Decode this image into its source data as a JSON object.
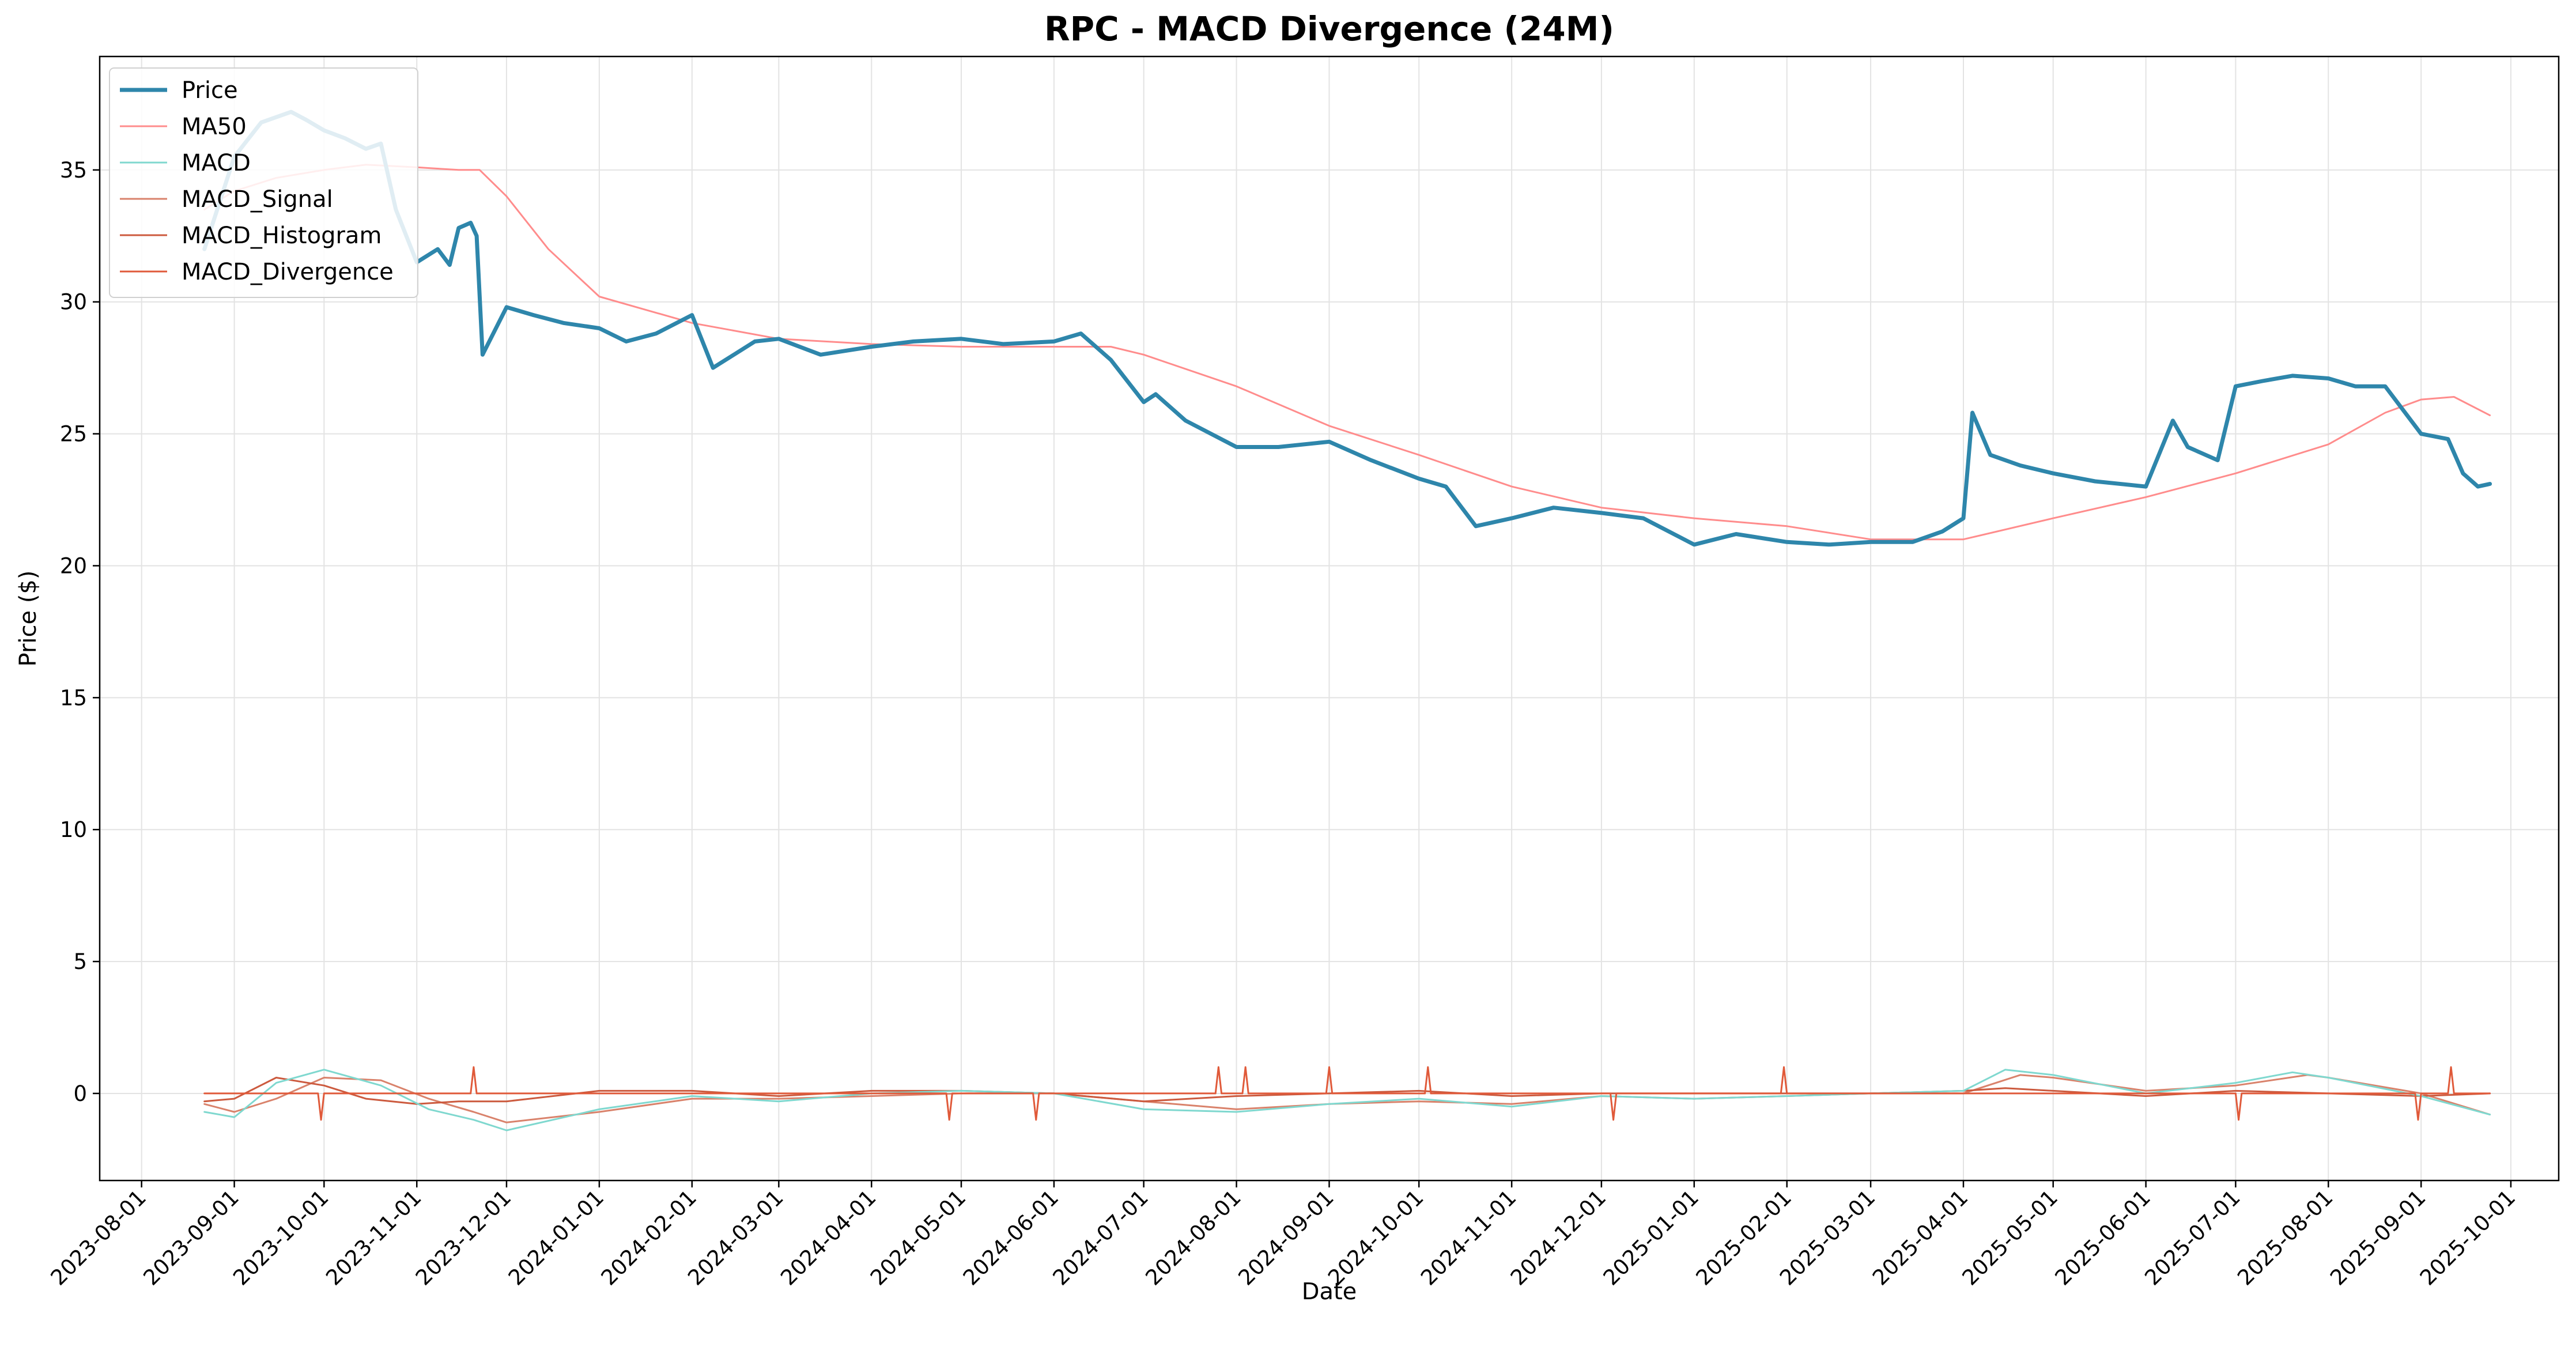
{
  "chart_data": {
    "type": "line",
    "title": "RPC - MACD Divergence (24M)",
    "xlabel": "Date",
    "ylabel": "Price ($)",
    "xlim": [
      "2023-07-18",
      "2025-10-17"
    ],
    "ylim": [
      -3.3,
      39.3
    ],
    "grid": true,
    "legend_position": "top-left",
    "x_ticks": [
      "2023-08-01",
      "2023-09-01",
      "2023-10-01",
      "2023-11-01",
      "2023-12-01",
      "2024-01-01",
      "2024-02-01",
      "2024-03-01",
      "2024-04-01",
      "2024-05-01",
      "2024-06-01",
      "2024-07-01",
      "2024-08-01",
      "2024-09-01",
      "2024-10-01",
      "2024-11-01",
      "2024-12-01",
      "2025-01-01",
      "2025-02-01",
      "2025-03-01",
      "2025-04-01",
      "2025-05-01",
      "2025-06-01",
      "2025-07-01",
      "2025-08-01",
      "2025-09-01",
      "2025-10-01"
    ],
    "y_ticks": [
      0,
      5,
      10,
      15,
      20,
      25,
      30,
      35
    ],
    "series": [
      {
        "name": "Price",
        "color": "#2e86ab",
        "width": 7,
        "x": [
          "2023-08-22",
          "2023-09-01",
          "2023-09-10",
          "2023-09-20",
          "2023-09-25",
          "2023-10-01",
          "2023-10-08",
          "2023-10-15",
          "2023-10-20",
          "2023-10-25",
          "2023-11-01",
          "2023-11-08",
          "2023-11-12",
          "2023-11-15",
          "2023-11-19",
          "2023-11-21",
          "2023-11-23",
          "2023-12-01",
          "2023-12-10",
          "2023-12-20",
          "2024-01-01",
          "2024-01-10",
          "2024-01-20",
          "2024-02-01",
          "2024-02-08",
          "2024-02-15",
          "2024-02-22",
          "2024-03-01",
          "2024-03-15",
          "2024-04-01",
          "2024-04-15",
          "2024-05-01",
          "2024-05-15",
          "2024-06-01",
          "2024-06-10",
          "2024-06-20",
          "2024-07-01",
          "2024-07-05",
          "2024-07-15",
          "2024-08-01",
          "2024-08-15",
          "2024-09-01",
          "2024-09-15",
          "2024-10-01",
          "2024-10-10",
          "2024-10-20",
          "2024-11-01",
          "2024-11-15",
          "2024-12-01",
          "2024-12-15",
          "2025-01-01",
          "2025-01-15",
          "2025-02-01",
          "2025-02-15",
          "2025-03-01",
          "2025-03-15",
          "2025-03-25",
          "2025-04-01",
          "2025-04-04",
          "2025-04-10",
          "2025-04-20",
          "2025-05-01",
          "2025-05-15",
          "2025-06-01",
          "2025-06-10",
          "2025-06-15",
          "2025-06-25",
          "2025-07-01",
          "2025-07-10",
          "2025-07-20",
          "2025-08-01",
          "2025-08-10",
          "2025-08-20",
          "2025-09-01",
          "2025-09-10",
          "2025-09-15",
          "2025-09-20",
          "2025-09-24"
        ],
        "y": [
          32.0,
          35.5,
          36.8,
          37.2,
          36.9,
          36.5,
          36.2,
          35.8,
          36.0,
          33.5,
          31.5,
          32.0,
          31.4,
          32.8,
          33.0,
          32.5,
          28.0,
          29.8,
          29.5,
          29.2,
          29.0,
          28.5,
          28.8,
          29.5,
          27.5,
          28.0,
          28.5,
          28.6,
          28.0,
          28.3,
          28.5,
          28.6,
          28.4,
          28.5,
          28.8,
          27.8,
          26.2,
          26.5,
          25.5,
          24.5,
          24.5,
          24.7,
          24.0,
          23.3,
          23.0,
          21.5,
          21.8,
          22.2,
          22.0,
          21.8,
          20.8,
          21.2,
          20.9,
          20.8,
          20.9,
          20.9,
          21.3,
          21.8,
          25.8,
          24.2,
          23.8,
          23.5,
          23.2,
          23.0,
          25.5,
          24.5,
          24.0,
          26.8,
          27.0,
          27.2,
          27.1,
          26.8,
          26.8,
          25.0,
          24.8,
          23.5,
          23.0,
          23.1
        ]
      },
      {
        "name": "MA50",
        "color": "#ff8c8c",
        "width": 3,
        "x": [
          "2023-08-22",
          "2023-09-01",
          "2023-09-15",
          "2023-10-01",
          "2023-10-15",
          "2023-11-01",
          "2023-11-15",
          "2023-11-22",
          "2023-12-01",
          "2023-12-15",
          "2024-01-01",
          "2024-02-01",
          "2024-03-01",
          "2024-04-01",
          "2024-05-01",
          "2024-06-01",
          "2024-06-20",
          "2024-07-01",
          "2024-08-01",
          "2024-09-01",
          "2024-10-01",
          "2024-11-01",
          "2024-12-01",
          "2025-01-01",
          "2025-02-01",
          "2025-03-01",
          "2025-04-01",
          "2025-05-01",
          "2025-06-01",
          "2025-07-01",
          "2025-08-01",
          "2025-08-20",
          "2025-09-01",
          "2025-09-12",
          "2025-09-24"
        ],
        "y": [
          33.5,
          34.2,
          34.7,
          35.0,
          35.2,
          35.1,
          35.0,
          35.0,
          34.0,
          32.0,
          30.2,
          29.2,
          28.6,
          28.4,
          28.3,
          28.3,
          28.3,
          28.0,
          26.8,
          25.3,
          24.2,
          23.0,
          22.2,
          21.8,
          21.5,
          21.0,
          21.0,
          21.8,
          22.6,
          23.5,
          24.6,
          25.8,
          26.3,
          26.4,
          25.7
        ]
      },
      {
        "name": "MACD",
        "color": "#7fd8cf",
        "width": 3,
        "x": [
          "2023-08-22",
          "2023-09-01",
          "2023-09-15",
          "2023-10-01",
          "2023-10-20",
          "2023-11-05",
          "2023-11-20",
          "2023-12-01",
          "2024-01-01",
          "2024-02-01",
          "2024-03-01",
          "2024-04-01",
          "2024-05-01",
          "2024-06-01",
          "2024-07-01",
          "2024-08-01",
          "2024-09-01",
          "2024-10-01",
          "2024-11-01",
          "2024-12-01",
          "2025-01-01",
          "2025-02-01",
          "2025-03-01",
          "2025-04-01",
          "2025-04-15",
          "2025-05-01",
          "2025-06-01",
          "2025-07-01",
          "2025-07-20",
          "2025-08-01",
          "2025-09-01",
          "2025-09-24"
        ],
        "y": [
          -0.7,
          -0.9,
          0.4,
          0.9,
          0.3,
          -0.6,
          -1.0,
          -1.4,
          -0.6,
          -0.1,
          -0.3,
          0.0,
          0.1,
          0.0,
          -0.6,
          -0.7,
          -0.4,
          -0.2,
          -0.5,
          -0.1,
          -0.2,
          -0.1,
          0.0,
          0.1,
          0.9,
          0.7,
          0.0,
          0.4,
          0.8,
          0.6,
          -0.1,
          -0.8
        ]
      },
      {
        "name": "MACD_Signal",
        "color": "#d9826b",
        "width": 3,
        "x": [
          "2023-08-22",
          "2023-09-01",
          "2023-09-15",
          "2023-10-01",
          "2023-10-20",
          "2023-11-05",
          "2023-11-20",
          "2023-12-01",
          "2024-01-01",
          "2024-02-01",
          "2024-03-01",
          "2024-04-01",
          "2024-05-01",
          "2024-06-01",
          "2024-07-01",
          "2024-08-01",
          "2024-09-01",
          "2024-10-01",
          "2024-11-01",
          "2024-12-01",
          "2025-01-01",
          "2025-02-01",
          "2025-03-01",
          "2025-04-01",
          "2025-04-20",
          "2025-05-01",
          "2025-06-01",
          "2025-07-01",
          "2025-07-25",
          "2025-08-01",
          "2025-09-01",
          "2025-09-24"
        ],
        "y": [
          -0.4,
          -0.7,
          -0.2,
          0.6,
          0.5,
          -0.2,
          -0.7,
          -1.1,
          -0.7,
          -0.2,
          -0.2,
          -0.1,
          0.0,
          0.0,
          -0.3,
          -0.6,
          -0.4,
          -0.3,
          -0.4,
          -0.1,
          -0.2,
          -0.1,
          0.0,
          0.0,
          0.7,
          0.6,
          0.1,
          0.3,
          0.7,
          0.6,
          0.0,
          -0.8
        ]
      },
      {
        "name": "MACD_Histogram",
        "color": "#cc5a3e",
        "width": 3,
        "x": [
          "2023-08-22",
          "2023-09-01",
          "2023-09-15",
          "2023-10-01",
          "2023-10-15",
          "2023-11-01",
          "2023-11-15",
          "2023-12-01",
          "2024-01-01",
          "2024-02-01",
          "2024-03-01",
          "2024-04-01",
          "2024-05-01",
          "2024-06-01",
          "2024-07-01",
          "2024-08-01",
          "2024-09-01",
          "2024-10-01",
          "2024-11-01",
          "2024-12-01",
          "2025-01-01",
          "2025-02-01",
          "2025-03-01",
          "2025-04-01",
          "2025-04-15",
          "2025-05-01",
          "2025-06-01",
          "2025-07-01",
          "2025-08-01",
          "2025-09-01",
          "2025-09-24"
        ],
        "y": [
          -0.3,
          -0.2,
          0.6,
          0.3,
          -0.2,
          -0.4,
          -0.3,
          -0.3,
          0.1,
          0.1,
          -0.1,
          0.1,
          0.1,
          0.0,
          -0.3,
          -0.1,
          0.0,
          0.1,
          -0.1,
          0.0,
          0.0,
          0.0,
          0.0,
          0.1,
          0.2,
          0.1,
          -0.1,
          0.1,
          0.0,
          -0.1,
          0.0
        ]
      },
      {
        "name": "MACD_Divergence",
        "color": "#e05a3a",
        "width": 3,
        "x": [
          "2023-08-22",
          "2023-09-29",
          "2023-09-30",
          "2023-10-01",
          "2023-11-19",
          "2023-11-20",
          "2023-11-21",
          "2024-04-26",
          "2024-04-27",
          "2024-04-28",
          "2024-05-25",
          "2024-05-26",
          "2024-05-27",
          "2024-07-25",
          "2024-07-26",
          "2024-07-27",
          "2024-08-03",
          "2024-08-04",
          "2024-08-05",
          "2024-08-31",
          "2024-09-01",
          "2024-09-02",
          "2024-10-03",
          "2024-10-04",
          "2024-10-05",
          "2024-12-04",
          "2024-12-05",
          "2024-12-06",
          "2025-01-30",
          "2025-01-31",
          "2025-02-01",
          "2025-07-01",
          "2025-07-02",
          "2025-07-03",
          "2025-08-30",
          "2025-08-31",
          "2025-09-01",
          "2025-09-10",
          "2025-09-11",
          "2025-09-12",
          "2025-09-24"
        ],
        "y": [
          0.0,
          0.0,
          -1.0,
          0.0,
          0.0,
          1.0,
          0.0,
          0.0,
          -1.0,
          0.0,
          0.0,
          -1.0,
          0.0,
          0.0,
          1.0,
          0.0,
          0.0,
          1.0,
          0.0,
          0.0,
          1.0,
          0.0,
          0.0,
          1.0,
          0.0,
          0.0,
          -1.0,
          0.0,
          0.0,
          1.0,
          0.0,
          0.0,
          -1.0,
          0.0,
          0.0,
          -1.0,
          0.0,
          0.0,
          1.0,
          0.0,
          0.0
        ]
      }
    ]
  }
}
